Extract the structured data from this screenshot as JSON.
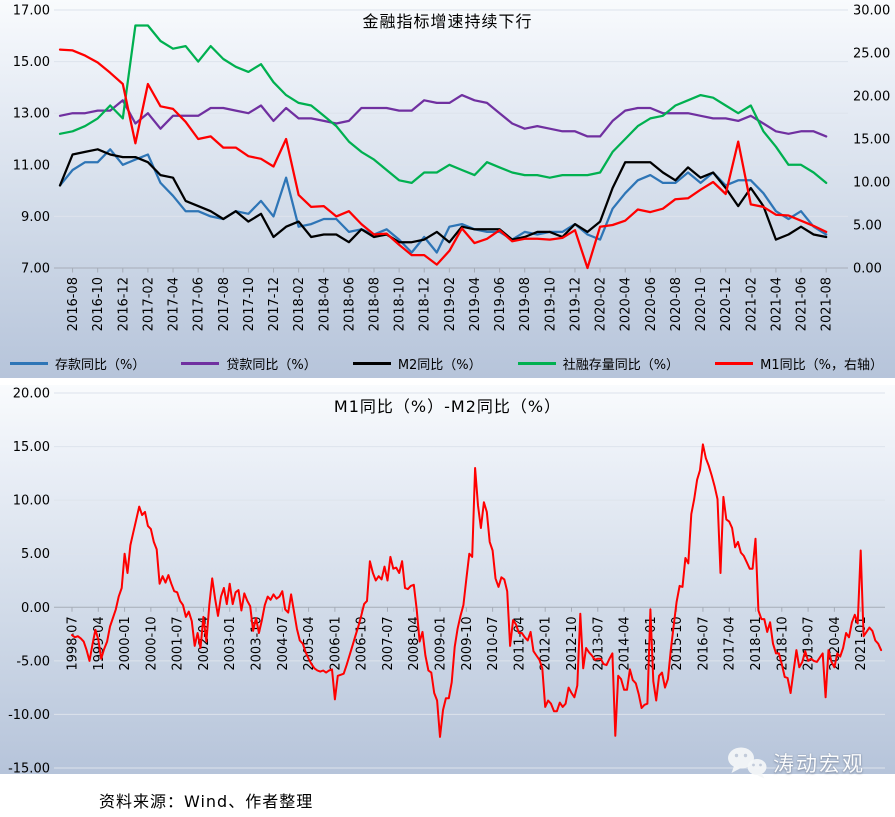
{
  "source_note": "资料来源：Wind、作者整理",
  "watermark": {
    "text": "涛动宏观",
    "icon": "wechat-icon"
  },
  "chart_data": [
    {
      "type": "line",
      "title": "金融指标增速持续下行",
      "x_monthly_start": "2016-07",
      "x_tick_labels": [
        "2016-08",
        "2016-10",
        "2016-12",
        "2017-02",
        "2017-04",
        "2017-06",
        "2017-08",
        "2017-10",
        "2017-12",
        "2018-02",
        "2018-04",
        "2018-06",
        "2018-08",
        "2018-10",
        "2018-12",
        "2019-02",
        "2019-04",
        "2019-06",
        "2019-08",
        "2019-10",
        "2019-12",
        "2020-02",
        "2020-04",
        "2020-06",
        "2020-08",
        "2020-10",
        "2020-12",
        "2021-02",
        "2021-04",
        "2021-06",
        "2021-08"
      ],
      "grid": true,
      "legend_position": "bottom",
      "left_axis": {
        "min": 7,
        "max": 17,
        "tick_values": [
          7,
          9,
          11,
          13,
          15,
          17
        ],
        "tick_labels": [
          "7.00",
          "9.00",
          "11.00",
          "13.00",
          "15.00",
          "17.00"
        ]
      },
      "right_axis": {
        "min": 0,
        "max": 30,
        "tick_values": [
          0,
          5,
          10,
          15,
          20,
          25,
          30
        ],
        "tick_labels": [
          "0.00",
          "5.00",
          "10.00",
          "15.00",
          "20.00",
          "25.00",
          "30.00"
        ]
      },
      "series": [
        {
          "key": "deposits",
          "name": "存款同比（%）",
          "color": "#2E75B6",
          "axis": "left",
          "values": [
            10.2,
            10.8,
            11.1,
            11.1,
            11.6,
            11.0,
            11.2,
            11.4,
            10.3,
            9.8,
            9.2,
            9.2,
            9.0,
            8.9,
            9.2,
            9.1,
            9.6,
            9.0,
            10.5,
            8.6,
            8.7,
            8.9,
            8.9,
            8.4,
            8.5,
            8.3,
            8.5,
            8.1,
            7.6,
            8.2,
            7.6,
            8.6,
            8.7,
            8.5,
            8.4,
            8.4,
            8.1,
            8.4,
            8.3,
            8.4,
            8.4,
            8.7,
            8.3,
            8.1,
            9.3,
            9.9,
            10.4,
            10.6,
            10.3,
            10.3,
            10.7,
            10.3,
            10.7,
            10.2,
            10.4,
            10.4,
            9.9,
            9.2,
            8.9,
            9.2,
            8.6,
            8.3
          ]
        },
        {
          "key": "loans",
          "name": "贷款同比（%）",
          "color": "#7030A0",
          "axis": "left",
          "values": [
            12.9,
            13.0,
            13.0,
            13.1,
            13.1,
            13.5,
            12.6,
            13.0,
            12.4,
            12.9,
            12.9,
            12.9,
            13.2,
            13.2,
            13.1,
            13.0,
            13.3,
            12.7,
            13.2,
            12.8,
            12.8,
            12.7,
            12.6,
            12.7,
            13.2,
            13.2,
            13.2,
            13.1,
            13.1,
            13.5,
            13.4,
            13.4,
            13.7,
            13.5,
            13.4,
            13.0,
            12.6,
            12.4,
            12.5,
            12.4,
            12.3,
            12.3,
            12.1,
            12.1,
            12.7,
            13.1,
            13.2,
            13.2,
            13.0,
            13.0,
            13.0,
            12.9,
            12.8,
            12.8,
            12.7,
            12.9,
            12.6,
            12.3,
            12.2,
            12.3,
            12.3,
            12.1
          ]
        },
        {
          "key": "m2",
          "name": "M2同比（%）",
          "color": "#000000",
          "axis": "left",
          "values": [
            10.2,
            11.4,
            11.5,
            11.6,
            11.4,
            11.3,
            11.3,
            11.1,
            10.6,
            10.5,
            9.6,
            9.4,
            9.2,
            8.9,
            9.2,
            8.8,
            9.1,
            8.2,
            8.6,
            8.8,
            8.2,
            8.3,
            8.3,
            8.0,
            8.5,
            8.2,
            8.3,
            8.0,
            8.0,
            8.1,
            8.4,
            8.0,
            8.6,
            8.5,
            8.5,
            8.5,
            8.1,
            8.2,
            8.4,
            8.4,
            8.2,
            8.7,
            8.4,
            8.8,
            10.1,
            11.1,
            11.1,
            11.1,
            10.7,
            10.4,
            10.9,
            10.5,
            10.7,
            10.1,
            9.4,
            10.1,
            9.4,
            8.1,
            8.3,
            8.6,
            8.3,
            8.2
          ]
        },
        {
          "key": "tsf",
          "name": "社融存量同比（%）",
          "color": "#00B050",
          "axis": "left",
          "values": [
            12.2,
            12.3,
            12.5,
            12.8,
            13.3,
            12.8,
            16.4,
            16.4,
            15.8,
            15.5,
            15.6,
            15.0,
            15.6,
            15.1,
            14.8,
            14.6,
            14.9,
            14.2,
            13.7,
            13.4,
            13.3,
            12.9,
            12.5,
            11.9,
            11.5,
            11.2,
            10.8,
            10.4,
            10.3,
            10.7,
            10.7,
            11.0,
            10.8,
            10.6,
            11.1,
            10.9,
            10.7,
            10.6,
            10.6,
            10.5,
            10.6,
            10.6,
            10.6,
            10.7,
            11.5,
            12.0,
            12.5,
            12.8,
            12.9,
            13.3,
            13.5,
            13.7,
            13.6,
            13.3,
            13.0,
            13.3,
            12.3,
            11.7,
            11.0,
            11.0,
            10.7,
            10.3
          ]
        },
        {
          "key": "m1",
          "name": "M1同比（%，右轴）",
          "color": "#FF0000",
          "axis": "right",
          "values": [
            25.4,
            25.3,
            24.7,
            23.9,
            22.7,
            21.4,
            14.5,
            21.4,
            18.8,
            18.5,
            17.0,
            15.0,
            15.3,
            14.0,
            14.0,
            13.0,
            12.7,
            11.8,
            15.0,
            8.5,
            7.1,
            7.2,
            6.0,
            6.6,
            5.1,
            3.9,
            4.0,
            2.7,
            1.5,
            1.5,
            0.4,
            2.0,
            4.6,
            2.9,
            3.4,
            4.4,
            3.1,
            3.4,
            3.4,
            3.3,
            3.5,
            4.4,
            0.0,
            4.8,
            5.0,
            5.5,
            6.8,
            6.5,
            6.9,
            8.0,
            8.1,
            9.1,
            10.0,
            8.6,
            14.7,
            7.4,
            7.1,
            6.2,
            6.1,
            5.5,
            4.9,
            4.2
          ]
        }
      ]
    },
    {
      "type": "line",
      "title": "M1同比（%）-M2同比（%）",
      "x_monthly_start": "1998-07",
      "x_tick_labels": [
        "1998-07",
        "1999-04",
        "2000-01",
        "2000-10",
        "2001-07",
        "2002-04",
        "2003-01",
        "2003-10",
        "2004-07",
        "2005-04",
        "2006-01",
        "2006-10",
        "2007-07",
        "2008-04",
        "2009-01",
        "2009-10",
        "2010-07",
        "2011-04",
        "2012-01",
        "2012-10",
        "2013-07",
        "2014-04",
        "2015-01",
        "2015-10",
        "2016-07",
        "2017-04",
        "2018-01",
        "2018-10",
        "2019-07",
        "2020-04",
        "2021-01"
      ],
      "x_tick_every": 9,
      "grid": true,
      "left_axis": {
        "min": -15,
        "max": 20,
        "tick_values": [
          -15,
          -10,
          -5,
          0,
          5,
          10,
          15,
          20
        ],
        "tick_labels": [
          "-15.00",
          "-10.00",
          "-5.00",
          "0.00",
          "5.00",
          "10.00",
          "15.00",
          "20.00"
        ],
        "negative_tick_color": "#FF0000"
      },
      "series": [
        {
          "key": "m1-minus-m2",
          "name": "M1同比（%）-M2同比（%）",
          "color": "#FF0000",
          "axis": "left",
          "values": [
            -2.6,
            -2.8,
            -2.7,
            -2.9,
            -3.2,
            -4.0,
            -5.0,
            -3.5,
            -2.1,
            -3.0,
            -4.8,
            -3.9,
            -3.2,
            -1.8,
            -1.0,
            -0.2,
            1.0,
            1.8,
            5.0,
            3.2,
            5.8,
            7.0,
            8.2,
            9.4,
            8.6,
            8.9,
            7.6,
            7.3,
            6.1,
            5.4,
            2.2,
            2.9,
            2.3,
            3.0,
            2.2,
            1.5,
            1.4,
            0.6,
            0.2,
            -0.9,
            -0.4,
            -1.3,
            -3.6,
            -2.4,
            -3.8,
            -0.9,
            -3.2,
            0.2,
            2.7,
            0.8,
            -0.8,
            1.0,
            1.8,
            0.3,
            2.2,
            0.3,
            1.4,
            1.6,
            -0.3,
            1.3,
            0.6,
            0.1,
            -2.2,
            -1.0,
            -2.4,
            -1.2,
            0.2,
            1.0,
            0.7,
            1.2,
            0.8,
            1.0,
            1.5,
            -0.2,
            -0.5,
            1.2,
            -0.4,
            -2.0,
            -3.1,
            -3.4,
            -4.2,
            -4.8,
            -5.3,
            -5.7,
            -5.9,
            -6.0,
            -5.9,
            -6.1,
            -5.9,
            -5.8,
            -8.6,
            -6.4,
            -6.3,
            -6.2,
            -5.4,
            -4.5,
            -3.6,
            -2.7,
            -1.8,
            -0.8,
            0.3,
            0.6,
            4.3,
            3.2,
            2.5,
            2.9,
            2.6,
            3.8,
            2.5,
            4.7,
            3.6,
            3.7,
            3.2,
            4.3,
            1.8,
            1.7,
            2.0,
            2.1,
            -0.2,
            -3.2,
            -2.3,
            -4.5,
            -5.9,
            -6.1,
            -8.0,
            -8.7,
            -12.1,
            -9.6,
            -8.5,
            -8.5,
            -7.0,
            -3.7,
            -2.0,
            -0.8,
            0.2,
            2.6,
            5.0,
            4.7,
            13.0,
            9.5,
            7.4,
            9.8,
            8.9,
            6.1,
            5.3,
            2.7,
            1.9,
            2.8,
            2.6,
            1.5,
            -3.6,
            -1.2,
            -1.6,
            -2.4,
            -2.4,
            -2.8,
            -3.1,
            -2.3,
            -4.1,
            -4.5,
            -4.9,
            -5.7,
            -9.3,
            -8.7,
            -9.0,
            -9.7,
            -9.7,
            -8.9,
            -9.3,
            -9.0,
            -7.5,
            -8.0,
            -8.4,
            -7.3,
            -0.6,
            -5.7,
            -3.8,
            -4.2,
            -4.5,
            -4.9,
            -4.8,
            -4.8,
            -5.3,
            -5.4,
            -4.8,
            -4.3,
            -12.0,
            -6.4,
            -6.7,
            -7.7,
            -7.7,
            -5.8,
            -6.8,
            -7.1,
            -8.1,
            -9.4,
            -9.1,
            -9.0,
            -0.2,
            -6.9,
            -8.7,
            -6.4,
            -6.1,
            -7.5,
            -6.7,
            -4.0,
            -1.7,
            0.5,
            2.0,
            1.9,
            4.6,
            4.1,
            8.7,
            10.1,
            11.9,
            12.8,
            15.2,
            13.9,
            13.2,
            12.3,
            11.3,
            10.1,
            3.2,
            10.3,
            8.2,
            8.0,
            7.4,
            5.6,
            6.1,
            5.1,
            4.8,
            4.2,
            3.6,
            3.6,
            6.4,
            -0.3,
            -1.1,
            -1.1,
            -2.3,
            -1.4,
            -3.4,
            -4.3,
            -4.3,
            -5.3,
            -6.5,
            -6.6,
            -8.0,
            -6.0,
            -4.0,
            -5.6,
            -5.1,
            -4.1,
            -5.0,
            -4.8,
            -5.0,
            -5.1,
            -4.7,
            -4.3,
            -8.4,
            -4.0,
            -5.1,
            -5.6,
            -4.3,
            -4.6,
            -3.8,
            -2.4,
            -2.8,
            -1.4,
            -0.7,
            -1.5,
            5.3,
            -2.7,
            -2.3,
            -1.9,
            -2.2,
            -3.1,
            -3.4,
            -4.0
          ]
        }
      ]
    }
  ]
}
